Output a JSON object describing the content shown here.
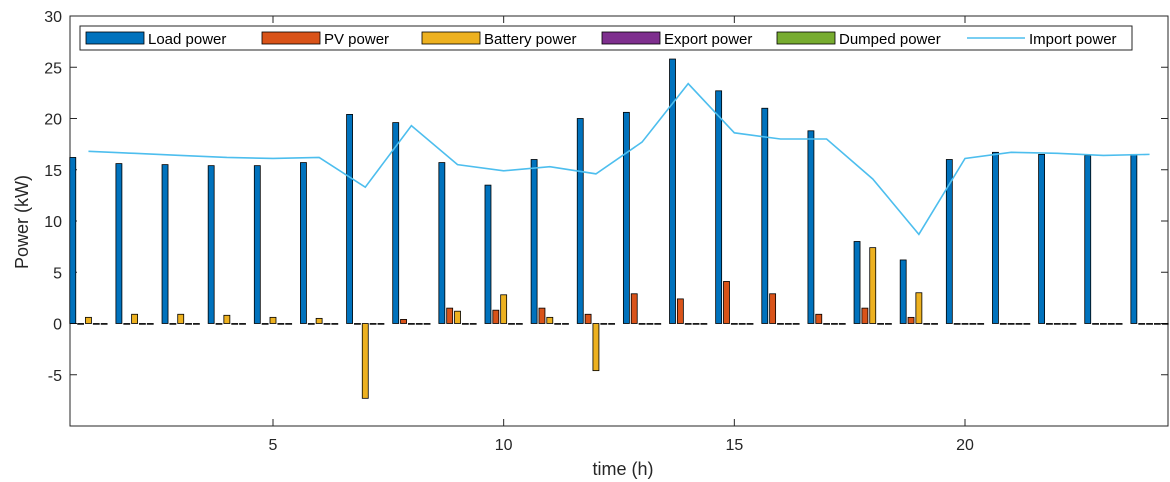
{
  "chart_data": {
    "type": "bar",
    "xlabel": "time (h)",
    "ylabel": "Power (kW)",
    "xlim": [
      0.6,
      24.4
    ],
    "ylim": [
      -10,
      30
    ],
    "xticks": [
      5,
      10,
      15,
      20
    ],
    "yticks": [
      -5,
      0,
      5,
      10,
      15,
      20,
      25,
      30
    ],
    "legend_position": "top",
    "x": [
      1,
      2,
      3,
      4,
      5,
      6,
      7,
      8,
      9,
      10,
      11,
      12,
      13,
      14,
      15,
      16,
      17,
      18,
      19,
      20,
      21,
      22,
      23,
      24
    ],
    "series": [
      {
        "name": "Load power",
        "kind": "bar",
        "color": "#0072BD",
        "values": [
          16.2,
          15.6,
          15.5,
          15.4,
          15.4,
          15.7,
          20.4,
          19.6,
          15.7,
          13.5,
          16.0,
          20.0,
          20.6,
          25.8,
          22.7,
          21.0,
          18.8,
          8.0,
          6.2,
          16.0,
          16.7,
          16.5,
          16.4,
          16.5
        ]
      },
      {
        "name": "PV power",
        "kind": "bar",
        "color": "#D95319",
        "values": [
          0,
          0,
          0,
          0,
          0,
          0,
          0,
          0.4,
          1.5,
          1.3,
          1.5,
          0.9,
          2.9,
          2.4,
          4.1,
          2.9,
          0.9,
          1.5,
          0.6,
          0,
          0,
          0,
          0,
          0
        ]
      },
      {
        "name": "Battery power",
        "kind": "bar",
        "color": "#EDB120",
        "values": [
          0.6,
          0.9,
          0.9,
          0.8,
          0.6,
          0.5,
          -7.3,
          0,
          1.2,
          2.8,
          0.6,
          -4.6,
          0,
          0,
          0,
          0,
          0,
          7.4,
          3.0,
          0,
          0,
          0,
          0,
          0
        ]
      },
      {
        "name": "Export power",
        "kind": "bar",
        "color": "#7E2F8E",
        "values": [
          0,
          0,
          0,
          0,
          0,
          0,
          0,
          0,
          0,
          0,
          0,
          0,
          0,
          0,
          0,
          0,
          0,
          0,
          0,
          0,
          0,
          0,
          0,
          0
        ]
      },
      {
        "name": "Dumped power",
        "kind": "bar",
        "color": "#77AC30",
        "values": [
          0,
          0,
          0,
          0,
          0,
          0,
          0,
          0,
          0,
          0,
          0,
          0,
          0,
          0,
          0,
          0,
          0,
          0,
          0,
          0,
          0,
          0,
          0,
          0
        ]
      },
      {
        "name": "Import power",
        "kind": "line",
        "color": "#4DBEEE",
        "values": [
          16.8,
          16.6,
          16.4,
          16.2,
          16.1,
          16.2,
          13.3,
          19.3,
          15.5,
          14.9,
          15.3,
          14.6,
          17.7,
          23.4,
          18.6,
          18.0,
          18.0,
          14.1,
          8.7,
          16.1,
          16.7,
          16.6,
          16.4,
          16.5
        ]
      }
    ],
    "grid": false
  }
}
